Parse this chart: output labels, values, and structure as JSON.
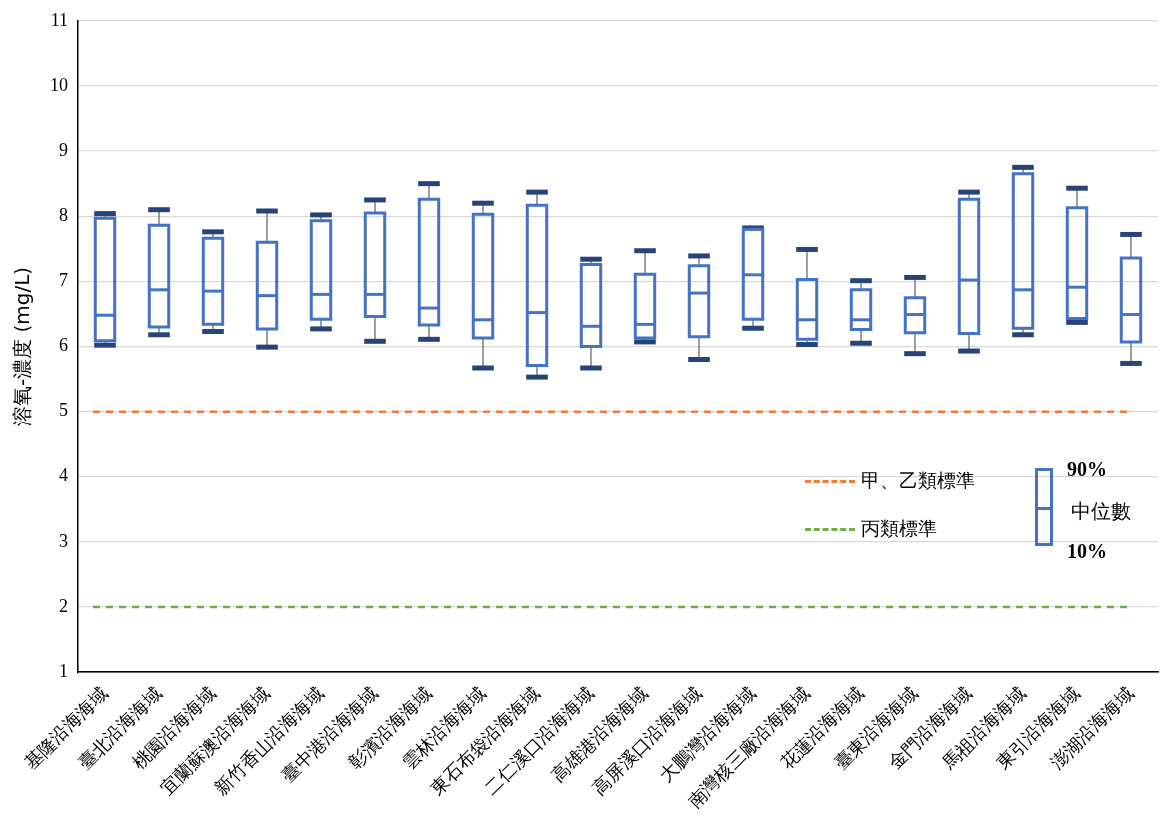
{
  "chart_data": {
    "type": "box",
    "ylabel": "溶氧-濃度 (mg/L)",
    "categories": [
      "基隆沿海海域",
      "臺北沿海海域",
      "桃園沿海海域",
      "宜蘭蘇澳沿海海域",
      "新竹香山沿海海域",
      "臺中港沿海海域",
      "彰濱沿海海域",
      "雲林沿海海域",
      "東石布袋沿海海域",
      "二仁溪口沿海海域",
      "高雄港沿海海域",
      "高屏溪口沿海海域",
      "大鵬灣沿海海域",
      "南灣核三廠沿海海域",
      "花蓮沿海海域",
      "臺東沿海海域",
      "金門沿海海域",
      "馬祖沿海海域",
      "東引沿海海域",
      "澎湖沿海海域"
    ],
    "series": [
      {
        "color": "#4472c4",
        "boxes": [
          {
            "low": 6.02,
            "q1": 6.09,
            "median": 6.48,
            "q3": 7.97,
            "high": 8.04
          },
          {
            "low": 6.18,
            "q1": 6.3,
            "median": 6.87,
            "q3": 7.86,
            "high": 8.1
          },
          {
            "low": 6.23,
            "q1": 6.34,
            "median": 6.85,
            "q3": 7.66,
            "high": 7.76
          },
          {
            "low": 5.99,
            "q1": 6.27,
            "median": 6.78,
            "q3": 7.6,
            "high": 8.08
          },
          {
            "low": 6.27,
            "q1": 6.42,
            "median": 6.8,
            "q3": 7.93,
            "high": 8.02
          },
          {
            "low": 6.08,
            "q1": 6.46,
            "median": 6.8,
            "q3": 8.05,
            "high": 8.25
          },
          {
            "low": 6.11,
            "q1": 6.33,
            "median": 6.59,
            "q3": 8.26,
            "high": 8.5
          },
          {
            "low": 5.67,
            "q1": 6.13,
            "median": 6.41,
            "q3": 8.03,
            "high": 8.2
          },
          {
            "low": 5.53,
            "q1": 5.71,
            "median": 6.52,
            "q3": 8.17,
            "high": 8.37
          },
          {
            "low": 5.67,
            "q1": 6.0,
            "median": 6.31,
            "q3": 7.26,
            "high": 7.34
          },
          {
            "low": 6.07,
            "q1": 6.13,
            "median": 6.34,
            "q3": 7.11,
            "high": 7.47
          },
          {
            "low": 5.8,
            "q1": 6.15,
            "median": 6.82,
            "q3": 7.24,
            "high": 7.39
          },
          {
            "low": 6.28,
            "q1": 6.42,
            "median": 7.1,
            "q3": 7.8,
            "high": 7.82
          },
          {
            "low": 6.03,
            "q1": 6.11,
            "median": 6.41,
            "q3": 7.03,
            "high": 7.49
          },
          {
            "low": 6.05,
            "q1": 6.26,
            "median": 6.41,
            "q3": 6.87,
            "high": 7.01
          },
          {
            "low": 5.89,
            "q1": 6.21,
            "median": 6.49,
            "q3": 6.75,
            "high": 7.06
          },
          {
            "low": 5.93,
            "q1": 6.2,
            "median": 7.02,
            "q3": 8.26,
            "high": 8.37
          },
          {
            "low": 6.18,
            "q1": 6.28,
            "median": 6.87,
            "q3": 8.65,
            "high": 8.75
          },
          {
            "low": 6.37,
            "q1": 6.43,
            "median": 6.91,
            "q3": 8.13,
            "high": 8.43
          },
          {
            "low": 5.74,
            "q1": 6.07,
            "median": 6.49,
            "q3": 7.36,
            "high": 7.72
          }
        ]
      }
    ],
    "ylim": [
      1,
      11
    ],
    "yticks": [
      1,
      2,
      3,
      4,
      5,
      6,
      7,
      8,
      9,
      10,
      11
    ],
    "grid": "y",
    "ref_lines": [
      {
        "axis": "y",
        "value": 5,
        "label": "甲、乙類標準",
        "color": "#ed7d31",
        "line_style": "dashed"
      },
      {
        "axis": "y",
        "value": 2,
        "label": "丙類標準",
        "color": "#70ad47",
        "line_style": "dashed"
      }
    ],
    "legend": "bottom right",
    "annotations": [
      "90%",
      "中位數",
      "10%"
    ]
  }
}
